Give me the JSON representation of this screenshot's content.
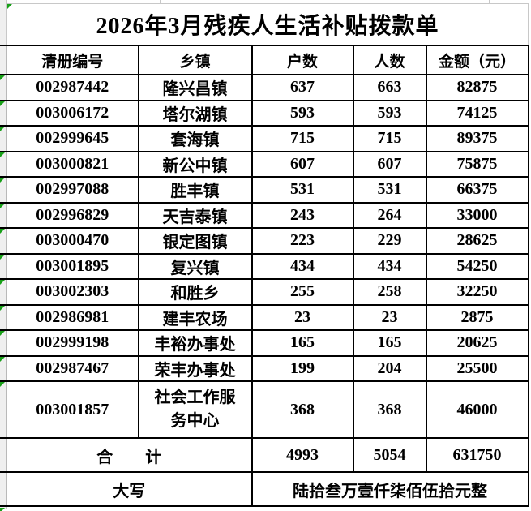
{
  "title": "2026年3月残疾人生活补贴拨款单",
  "columns": [
    "清册编号",
    "乡镇",
    "户数",
    "人数",
    "金额（元）"
  ],
  "rows": [
    {
      "code": "002987442",
      "township": "隆兴昌镇",
      "households": "637",
      "persons": "663",
      "amount": "82875"
    },
    {
      "code": "003006172",
      "township": "塔尔湖镇",
      "households": "593",
      "persons": "593",
      "amount": "74125"
    },
    {
      "code": "002999645",
      "township": "套海镇",
      "households": "715",
      "persons": "715",
      "amount": "89375"
    },
    {
      "code": "003000821",
      "township": "新公中镇",
      "households": "607",
      "persons": "607",
      "amount": "75875"
    },
    {
      "code": "002997088",
      "township": "胜丰镇",
      "households": "531",
      "persons": "531",
      "amount": "66375"
    },
    {
      "code": "002996829",
      "township": "天吉泰镇",
      "households": "243",
      "persons": "264",
      "amount": "33000"
    },
    {
      "code": "003000470",
      "township": "银定图镇",
      "households": "223",
      "persons": "229",
      "amount": "28625"
    },
    {
      "code": "003001895",
      "township": "复兴镇",
      "households": "434",
      "persons": "434",
      "amount": "54250"
    },
    {
      "code": "003002303",
      "township": "和胜乡",
      "households": "255",
      "persons": "258",
      "amount": "32250"
    },
    {
      "code": "002986981",
      "township": "建丰农场",
      "households": "23",
      "persons": "23",
      "amount": "2875"
    },
    {
      "code": "002999198",
      "township": "丰裕办事处",
      "households": "165",
      "persons": "165",
      "amount": "20625"
    },
    {
      "code": "002987467",
      "township": "荣丰办事处",
      "households": "199",
      "persons": "204",
      "amount": "25500"
    },
    {
      "code": "003001857",
      "township": "社会工作服务中心",
      "households": "368",
      "persons": "368",
      "amount": "46000"
    }
  ],
  "total": {
    "label": "合　　计",
    "households": "4993",
    "persons": "5054",
    "amount": "631750"
  },
  "amount_words": {
    "label": "大写",
    "value": "陆拾叁万壹仟柒佰伍拾元整"
  },
  "colors": {
    "triangle_green": "#18a018",
    "border_black": "#000000",
    "gridline_gray": "#c8c8c8",
    "sliver_gray": "#efefef"
  },
  "icons": {
    "error_indicator": "green-corner-triangle"
  }
}
